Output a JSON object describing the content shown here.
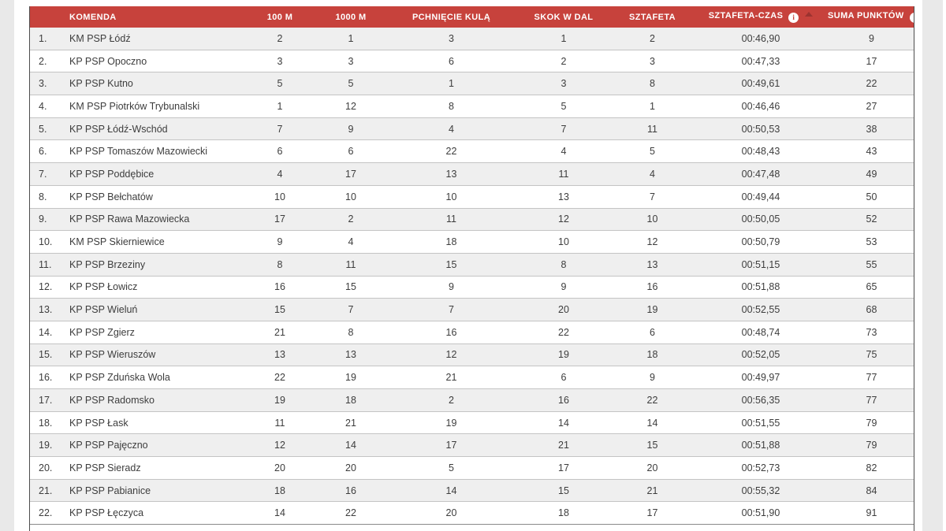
{
  "colors": {
    "header_bg": "#c7423c",
    "header_text": "#ffffff",
    "row_alt_bg": "#efefef",
    "row_bg": "#ffffff",
    "row_border": "#c4c4c4",
    "table_border": "#4d4d4d",
    "cell_text": "#3d3d3d",
    "sort_arrow_dim": "#9c3330",
    "sort_arrow_active": "#ffffff",
    "gutter": "#e9e9e9"
  },
  "icons": {
    "info_glyph": "i"
  },
  "table": {
    "columns": [
      {
        "key": "rank",
        "label": ""
      },
      {
        "key": "komenda",
        "label": "KOMENDA"
      },
      {
        "key": "c100m",
        "label": "100 M"
      },
      {
        "key": "c1000m",
        "label": "1000 M"
      },
      {
        "key": "kula",
        "label": "PCHNIĘCIE KULĄ"
      },
      {
        "key": "skok",
        "label": "SKOK W DAL"
      },
      {
        "key": "sztafeta",
        "label": "SZTAFETA"
      },
      {
        "key": "czas",
        "label": "SZTAFETA-CZAS",
        "has_info": true,
        "sort": "asc-dim"
      },
      {
        "key": "suma",
        "label": "SUMA PUNKTÓW",
        "has_info": true,
        "sort": "asc-active"
      }
    ],
    "rows": [
      [
        "1.",
        "KM PSP Łódź",
        "2",
        "1",
        "3",
        "1",
        "2",
        "00:46,90",
        "9"
      ],
      [
        "2.",
        "KP PSP Opoczno",
        "3",
        "3",
        "6",
        "2",
        "3",
        "00:47,33",
        "17"
      ],
      [
        "3.",
        "KP PSP Kutno",
        "5",
        "5",
        "1",
        "3",
        "8",
        "00:49,61",
        "22"
      ],
      [
        "4.",
        "KM PSP Piotrków Trybunalski",
        "1",
        "12",
        "8",
        "5",
        "1",
        "00:46,46",
        "27"
      ],
      [
        "5.",
        "KP PSP Łódź-Wschód",
        "7",
        "9",
        "4",
        "7",
        "11",
        "00:50,53",
        "38"
      ],
      [
        "6.",
        "KP PSP Tomaszów Mazowiecki",
        "6",
        "6",
        "22",
        "4",
        "5",
        "00:48,43",
        "43"
      ],
      [
        "7.",
        "KP PSP Poddębice",
        "4",
        "17",
        "13",
        "11",
        "4",
        "00:47,48",
        "49"
      ],
      [
        "8.",
        "KP PSP Bełchatów",
        "10",
        "10",
        "10",
        "13",
        "7",
        "00:49,44",
        "50"
      ],
      [
        "9.",
        "KP PSP Rawa Mazowiecka",
        "17",
        "2",
        "11",
        "12",
        "10",
        "00:50,05",
        "52"
      ],
      [
        "10.",
        "KM PSP Skierniewice",
        "9",
        "4",
        "18",
        "10",
        "12",
        "00:50,79",
        "53"
      ],
      [
        "11.",
        "KP PSP Brzeziny",
        "8",
        "11",
        "15",
        "8",
        "13",
        "00:51,15",
        "55"
      ],
      [
        "12.",
        "KP PSP Łowicz",
        "16",
        "15",
        "9",
        "9",
        "16",
        "00:51,88",
        "65"
      ],
      [
        "13.",
        "KP PSP Wieluń",
        "15",
        "7",
        "7",
        "20",
        "19",
        "00:52,55",
        "68"
      ],
      [
        "14.",
        "KP PSP Zgierz",
        "21",
        "8",
        "16",
        "22",
        "6",
        "00:48,74",
        "73"
      ],
      [
        "15.",
        "KP PSP Wieruszów",
        "13",
        "13",
        "12",
        "19",
        "18",
        "00:52,05",
        "75"
      ],
      [
        "16.",
        "KP PSP Zduńska Wola",
        "22",
        "19",
        "21",
        "6",
        "9",
        "00:49,97",
        "77"
      ],
      [
        "17.",
        "KP PSP Radomsko",
        "19",
        "18",
        "2",
        "16",
        "22",
        "00:56,35",
        "77"
      ],
      [
        "18.",
        "KP PSP Łask",
        "11",
        "21",
        "19",
        "14",
        "14",
        "00:51,55",
        "79"
      ],
      [
        "19.",
        "KP PSP Pajęczno",
        "12",
        "14",
        "17",
        "21",
        "15",
        "00:51,88",
        "79"
      ],
      [
        "20.",
        "KP PSP Sieradz",
        "20",
        "20",
        "5",
        "17",
        "20",
        "00:52,73",
        "82"
      ],
      [
        "21.",
        "KP PSP Pabianice",
        "18",
        "16",
        "14",
        "15",
        "21",
        "00:55,32",
        "84"
      ],
      [
        "22.",
        "KP PSP Łęczyca",
        "14",
        "22",
        "20",
        "18",
        "17",
        "00:51,90",
        "91"
      ]
    ]
  }
}
